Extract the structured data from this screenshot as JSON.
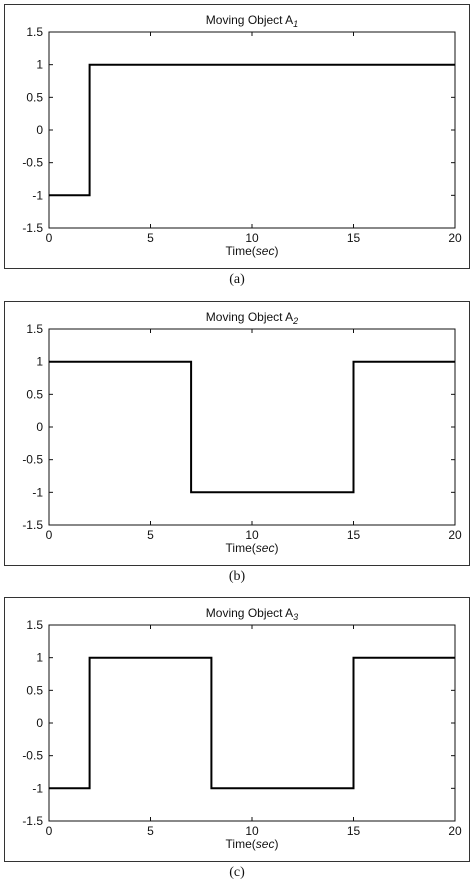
{
  "chart_data": [
    {
      "type": "line",
      "title": "Moving Object A",
      "title_subscript": "1",
      "xlabel": "Time",
      "xlabel_unit": "sec",
      "xlim": [
        0,
        20
      ],
      "ylim": [
        -1.5,
        1.5
      ],
      "xticks": [
        "0",
        "5",
        "10",
        "15",
        "20"
      ],
      "yticks": [
        "1.5",
        "1",
        "0.5",
        "0",
        "-0.5",
        "-1",
        "-1.5"
      ],
      "grid": false,
      "caption": "(a)",
      "series": [
        {
          "x": [
            0,
            2,
            2,
            20
          ],
          "y": [
            -1,
            -1,
            1,
            1
          ]
        }
      ]
    },
    {
      "type": "line",
      "title": "Moving Object A",
      "title_subscript": "2",
      "xlabel": "Time",
      "xlabel_unit": "sec",
      "xlim": [
        0,
        20
      ],
      "ylim": [
        -1.5,
        1.5
      ],
      "xticks": [
        "0",
        "5",
        "10",
        "15",
        "20"
      ],
      "yticks": [
        "1.5",
        "1",
        "0.5",
        "0",
        "-0.5",
        "-1",
        "-1.5"
      ],
      "grid": false,
      "caption": "(b)",
      "series": [
        {
          "x": [
            0,
            7,
            7,
            15,
            15,
            20
          ],
          "y": [
            1,
            1,
            -1,
            -1,
            1,
            1
          ]
        }
      ]
    },
    {
      "type": "line",
      "title": "Moving Object A",
      "title_subscript": "3",
      "xlabel": "Time",
      "xlabel_unit": "sec",
      "xlim": [
        0,
        20
      ],
      "ylim": [
        -1.5,
        1.5
      ],
      "xticks": [
        "0",
        "5",
        "10",
        "15",
        "20"
      ],
      "yticks": [
        "1.5",
        "1",
        "0.5",
        "0",
        "-0.5",
        "-1",
        "-1.5"
      ],
      "grid": false,
      "caption": "(c)",
      "series": [
        {
          "x": [
            0,
            2,
            2,
            8,
            8,
            15,
            15,
            20
          ],
          "y": [
            -1,
            -1,
            1,
            1,
            -1,
            -1,
            1,
            1
          ]
        }
      ]
    }
  ]
}
